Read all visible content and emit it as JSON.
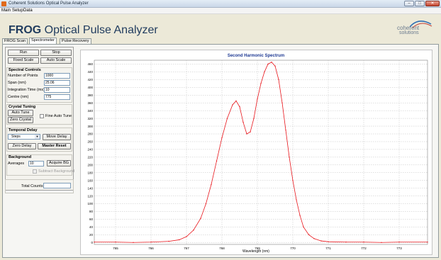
{
  "window": {
    "title": "Coherent Solutions Optical Pulse Analyzer",
    "min": "–",
    "max": "□",
    "close": "✕"
  },
  "menu": [
    "Main",
    "Setup",
    "Data"
  ],
  "header": {
    "bold": "FROG",
    "rest": " Optical Pulse Analyzer"
  },
  "logo": {
    "line1": "coherent",
    "line2": "solutions"
  },
  "tabs": [
    "FROG Scan",
    "Spectrometer",
    "Pulse Recovery"
  ],
  "controls": {
    "run": "Run",
    "stop": "Stop",
    "fixed_scale": "Fixed Scale",
    "auto_scale": "Auto Scale",
    "spectral": {
      "title": "Spectral Controls",
      "num_points_label": "Number of Points",
      "num_points": "1000",
      "span_label": "Span (nm)",
      "span": "25.06",
      "integration_label": "Integration Time (ms)",
      "integration": "10",
      "centre_label": "Centre (nm)",
      "centre": "775"
    },
    "crystal": {
      "title": "Crystal Tuning",
      "auto_tune": "Auto Tune",
      "fine_auto_tune": "Fine Auto Tune",
      "zero_crystal": "Zero Crystal"
    },
    "temporal": {
      "title": "Temporal Delay",
      "steps": "Steps",
      "move_delay": "Move Delay",
      "zero_delay": "Zero Delay",
      "master_reset": "Master Reset"
    },
    "background": {
      "title": "Background",
      "averages_label": "Averages",
      "averages": "10",
      "acquire_bg": "Acquire BG",
      "subtract_bg": "Subtract Background"
    },
    "total_counts_label": "Total Counts"
  },
  "chart_data": {
    "type": "line",
    "title": "Second Harmonic Spectrum",
    "xlabel": "Wavelength (nm)",
    "ylabel": "",
    "xlim": [
      764.4,
      773.8
    ],
    "ylim": [
      -5,
      470
    ],
    "xticks": [
      765,
      766,
      767,
      768,
      769,
      770,
      771,
      772,
      773
    ],
    "yticks": [
      0,
      20,
      40,
      60,
      80,
      100,
      120,
      140,
      160,
      180,
      200,
      220,
      240,
      260,
      280,
      300,
      320,
      340,
      360,
      380,
      400,
      420,
      440,
      460
    ],
    "grid": true,
    "series": [
      {
        "color": "#e8151b",
        "x": [
          764.4,
          765.0,
          765.5,
          766.0,
          766.5,
          766.8,
          767.0,
          767.2,
          767.4,
          767.55,
          767.7,
          767.85,
          768.0,
          768.15,
          768.3,
          768.4,
          768.5,
          768.6,
          768.7,
          768.8,
          768.9,
          769.0,
          769.1,
          769.2,
          769.3,
          769.4,
          769.5,
          769.6,
          769.7,
          769.8,
          769.9,
          770.0,
          770.1,
          770.2,
          770.3,
          770.45,
          770.6,
          770.8,
          771.0,
          771.5,
          772.0,
          772.5,
          773.0,
          773.8
        ],
        "y": [
          1,
          1,
          0,
          1,
          3,
          7,
          15,
          32,
          62,
          100,
          150,
          210,
          270,
          320,
          355,
          365,
          350,
          310,
          280,
          285,
          320,
          370,
          410,
          440,
          460,
          465,
          455,
          420,
          360,
          290,
          220,
          160,
          110,
          70,
          40,
          20,
          10,
          4,
          2,
          1,
          1,
          0,
          1,
          1
        ]
      }
    ]
  }
}
